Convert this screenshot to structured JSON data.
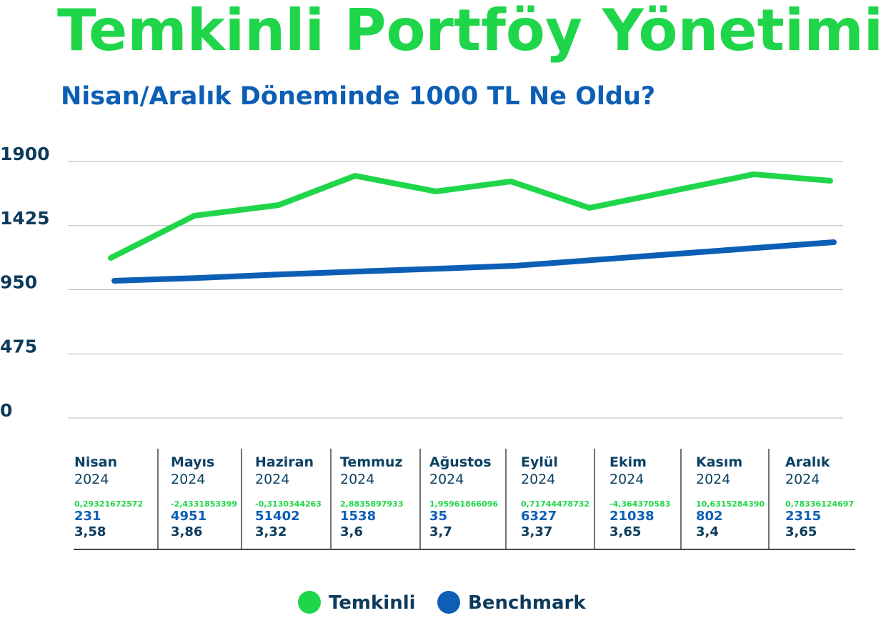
{
  "chart_data": {
    "type": "line",
    "title": "Temkinli Portföy Yönetimi",
    "subtitle": "Nisan/Aralık Döneminde 1000 TL Ne Oldu?",
    "categories": [
      "Nisan",
      "Mayıs",
      "Haziran",
      "Temmuz",
      "Ağustos",
      "Eylül",
      "Ekim",
      "Kasım",
      "Aralık"
    ],
    "series": [
      {
        "name": "Temkinli",
        "color": "#1fd64a",
        "values": [
          1185,
          1498,
          1577,
          1794,
          1678,
          1752,
          1556,
          1805,
          1757
        ]
      },
      {
        "name": "Benchmark",
        "color": "#0c5fb5",
        "values": [
          1016,
          1037,
          1064,
          1085,
          1106,
          1127,
          1170,
          1260,
          1302
        ]
      }
    ],
    "ylim": [
      0,
      1900
    ],
    "yticks": [
      0,
      475,
      950,
      1425,
      1900
    ],
    "grid": true,
    "legend": "bottom"
  },
  "table": {
    "columns": [
      {
        "year": "2024",
        "rows": [
          "0,29321672572",
          "231",
          "3,58"
        ]
      },
      {
        "year": "2024",
        "rows": [
          "-2,4331853399",
          "4951",
          "3,86"
        ]
      },
      {
        "year": "2024",
        "rows": [
          "-0,3130344263",
          "51402",
          "3,32"
        ]
      },
      {
        "year": "2024",
        "rows": [
          "2,8835897933",
          "1538",
          "3,6"
        ]
      },
      {
        "year": "2024",
        "rows": [
          "1,95961866096",
          "35",
          "3,7"
        ]
      },
      {
        "year": "2024",
        "rows": [
          "0,71744478732",
          "6327",
          "3,37"
        ]
      },
      {
        "year": "2024",
        "rows": [
          "-4,364370583",
          "21038",
          "3,65"
        ]
      },
      {
        "year": "2024",
        "rows": [
          "10,6315284390",
          "802",
          "3,4"
        ]
      },
      {
        "year": "2024",
        "rows": [
          "0,78336124697",
          "2315",
          "3,65"
        ]
      }
    ]
  }
}
